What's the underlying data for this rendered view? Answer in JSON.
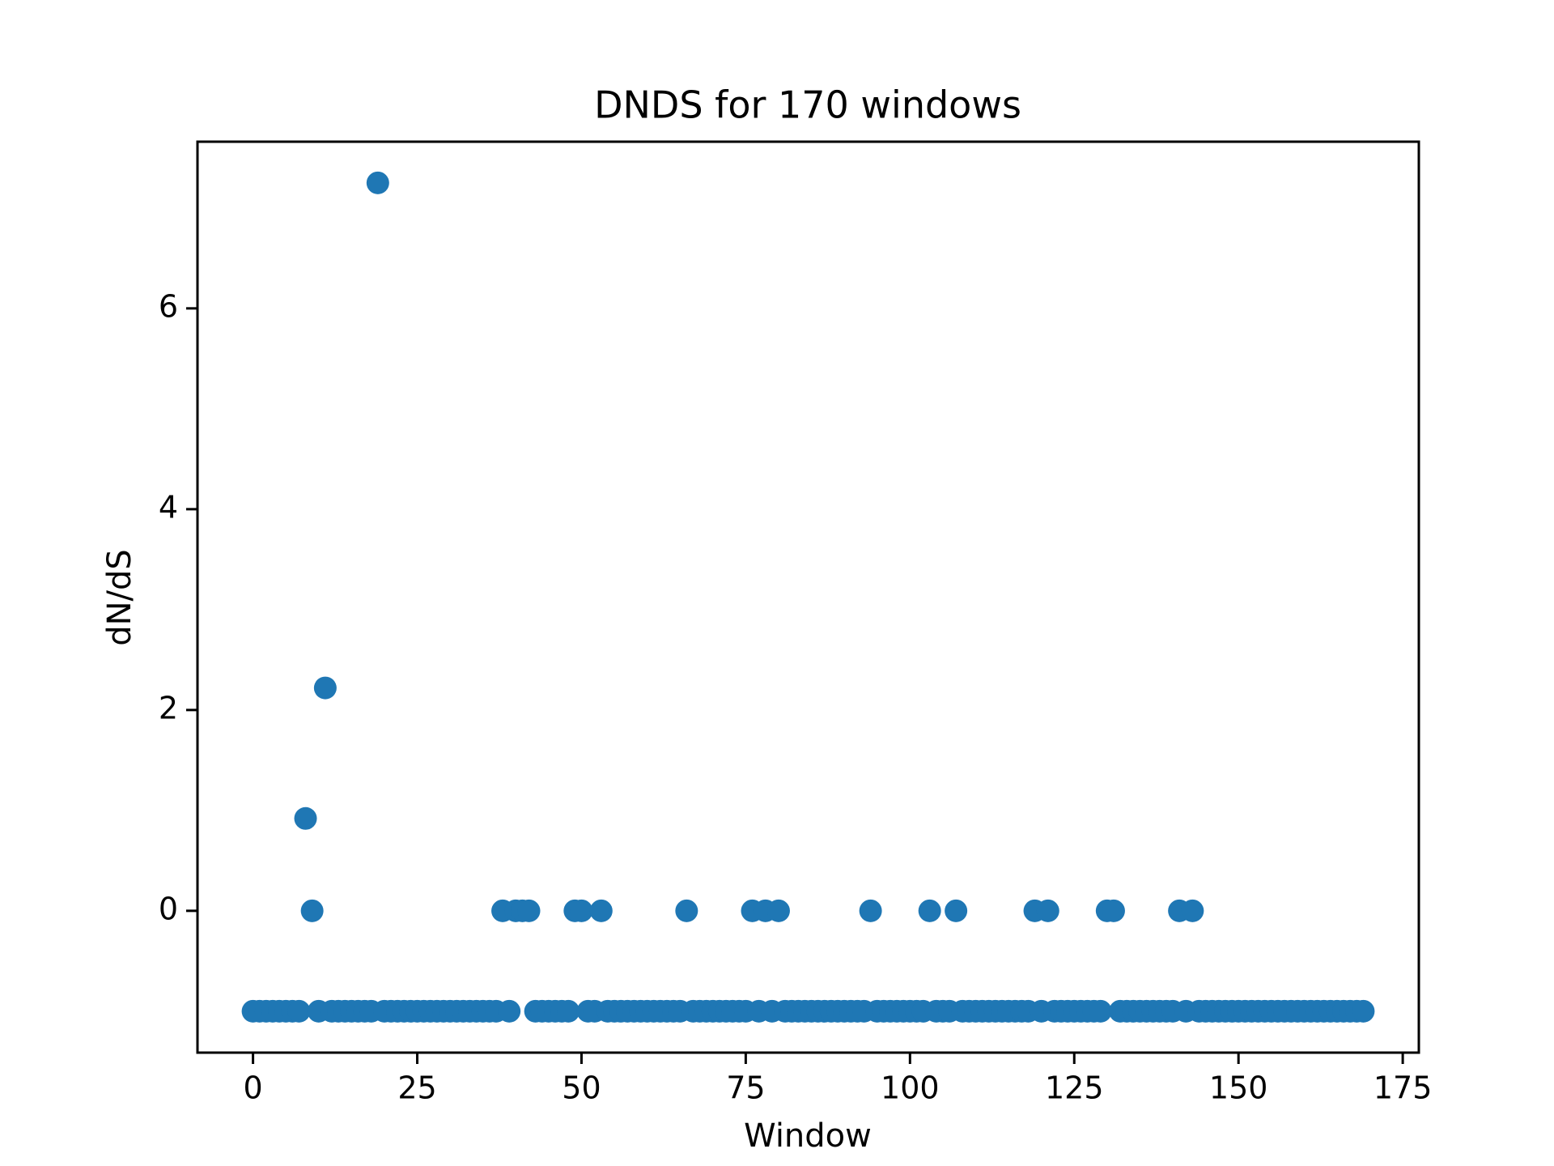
{
  "chart_data": {
    "type": "scatter",
    "title": "DNDS for 170 windows",
    "xlabel": "Window",
    "ylabel": "dN/dS",
    "color": "#1f77b4",
    "x": [
      0,
      1,
      2,
      3,
      4,
      5,
      6,
      7,
      8,
      9,
      10,
      11,
      12,
      13,
      14,
      15,
      16,
      17,
      18,
      19,
      20,
      21,
      22,
      23,
      24,
      25,
      26,
      27,
      28,
      29,
      30,
      31,
      32,
      33,
      34,
      35,
      36,
      37,
      38,
      39,
      40,
      41,
      42,
      43,
      44,
      45,
      46,
      47,
      48,
      49,
      50,
      51,
      52,
      53,
      54,
      55,
      56,
      57,
      58,
      59,
      60,
      61,
      62,
      63,
      64,
      65,
      66,
      67,
      68,
      69,
      70,
      71,
      72,
      73,
      74,
      75,
      76,
      77,
      78,
      79,
      80,
      81,
      82,
      83,
      84,
      85,
      86,
      87,
      88,
      89,
      90,
      91,
      92,
      93,
      94,
      95,
      96,
      97,
      98,
      99,
      100,
      101,
      102,
      103,
      104,
      105,
      106,
      107,
      108,
      109,
      110,
      111,
      112,
      113,
      114,
      115,
      116,
      117,
      118,
      119,
      120,
      121,
      122,
      123,
      124,
      125,
      126,
      127,
      128,
      129,
      130,
      131,
      132,
      133,
      134,
      135,
      136,
      137,
      138,
      139,
      140,
      141,
      142,
      143,
      144,
      145,
      146,
      147,
      148,
      149,
      150,
      151,
      152,
      153,
      154,
      155,
      156,
      157,
      158,
      159,
      160,
      161,
      162,
      163,
      164,
      165,
      166,
      167,
      168,
      169
    ],
    "values": [
      -1,
      -1,
      -1,
      -1,
      -1,
      -1,
      -1,
      -1,
      0.92,
      0,
      -1,
      2.22,
      -1,
      -1,
      -1,
      -1,
      -1,
      -1,
      -1,
      7.25,
      -1,
      -1,
      -1,
      -1,
      -1,
      -1,
      -1,
      -1,
      -1,
      -1,
      -1,
      -1,
      -1,
      -1,
      -1,
      -1,
      -1,
      -1,
      0,
      -1,
      0,
      0,
      0,
      -1,
      -1,
      -1,
      -1,
      -1,
      -1,
      0,
      0,
      -1,
      -1,
      0,
      -1,
      -1,
      -1,
      -1,
      -1,
      -1,
      -1,
      -1,
      -1,
      -1,
      -1,
      -1,
      0,
      -1,
      -1,
      -1,
      -1,
      -1,
      -1,
      -1,
      -1,
      -1,
      0,
      -1,
      0,
      -1,
      0,
      -1,
      -1,
      -1,
      -1,
      -1,
      -1,
      -1,
      -1,
      -1,
      -1,
      -1,
      -1,
      -1,
      0,
      -1,
      -1,
      -1,
      -1,
      -1,
      -1,
      -1,
      -1,
      0,
      -1,
      -1,
      -1,
      0,
      -1,
      -1,
      -1,
      -1,
      -1,
      -1,
      -1,
      -1,
      -1,
      -1,
      -1,
      0,
      -1,
      0,
      -1,
      -1,
      -1,
      -1,
      -1,
      -1,
      -1,
      -1,
      0,
      0,
      -1,
      -1,
      -1,
      -1,
      -1,
      -1,
      -1,
      -1,
      -1,
      0,
      -1,
      0,
      -1,
      -1,
      -1,
      -1,
      -1,
      -1,
      -1,
      -1,
      -1,
      -1,
      -1,
      -1,
      -1,
      -1,
      -1,
      -1,
      -1,
      -1,
      -1,
      -1,
      -1,
      -1,
      -1,
      -1,
      -1,
      -1
    ],
    "xlim": [
      -8.45,
      177.45
    ],
    "ylim": [
      -1.4125,
      7.66
    ],
    "xticks": [
      0,
      25,
      50,
      75,
      100,
      125,
      150,
      175
    ],
    "yticks": [
      0,
      2,
      4,
      6
    ]
  }
}
